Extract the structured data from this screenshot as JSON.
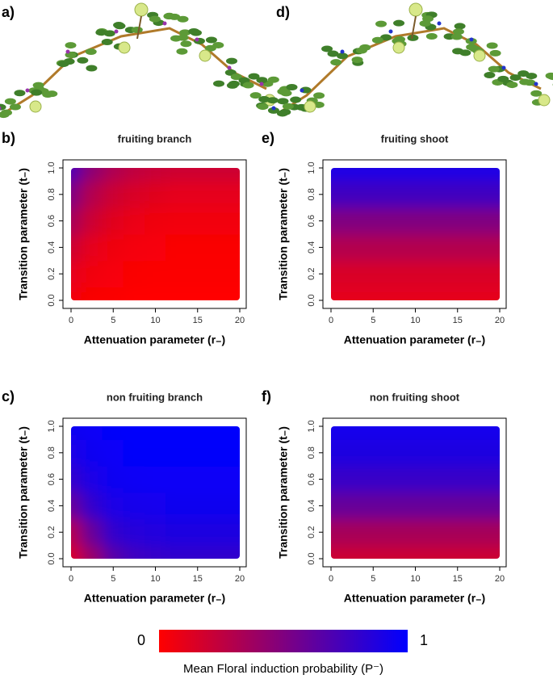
{
  "illustrations": [
    {
      "panel": "a)"
    },
    {
      "panel": "d)"
    }
  ],
  "colorbar": {
    "label": "Mean Floral induction probability (P⁻)",
    "ticks": [
      0,
      1
    ],
    "colors": [
      "#ff0000",
      "#0000ff"
    ]
  },
  "chart_data": [
    {
      "type": "heatmap",
      "panel": "b)",
      "title": "fruiting branch",
      "xlabel": "Attenuation parameter (r₋)",
      "ylabel": "Transition parameter (t₋)",
      "x": [
        0,
        2.5,
        5,
        7.5,
        10,
        12.5,
        15,
        17.5,
        20
      ],
      "y": [
        0,
        0.2,
        0.4,
        0.6,
        0.8,
        1
      ],
      "z": [
        [
          0.05,
          0.02,
          0.01,
          0,
          0,
          0,
          0,
          0,
          0
        ],
        [
          0.1,
          0.05,
          0.03,
          0.02,
          0.01,
          0.01,
          0.01,
          0.01,
          0.01
        ],
        [
          0.2,
          0.1,
          0.06,
          0.04,
          0.03,
          0.02,
          0.02,
          0.02,
          0.02
        ],
        [
          0.35,
          0.2,
          0.12,
          0.08,
          0.06,
          0.05,
          0.05,
          0.05,
          0.05
        ],
        [
          0.5,
          0.3,
          0.2,
          0.15,
          0.12,
          0.1,
          0.1,
          0.1,
          0.1
        ],
        [
          0.7,
          0.45,
          0.32,
          0.25,
          0.22,
          0.2,
          0.2,
          0.2,
          0.2
        ]
      ],
      "xlim": [
        0,
        20
      ],
      "ylim": [
        0,
        1
      ],
      "xticks": [
        0,
        5,
        10,
        15,
        20
      ],
      "yticks": [
        {
          "value": 0,
          "label": "0.0"
        },
        {
          "value": 0.2,
          "label": "0.2"
        },
        {
          "value": 0.4,
          "label": "0.4"
        },
        {
          "value": 0.6,
          "label": "0.6"
        },
        {
          "value": 0.8,
          "label": "0.8"
        },
        {
          "value": 1,
          "label": "1.0"
        }
      ]
    },
    {
      "type": "heatmap",
      "panel": "e)",
      "title": "fruiting shoot",
      "xlabel": "Attenuation parameter (r₋)",
      "ylabel": "Transition parameter (t₋)",
      "x": [
        0,
        2.5,
        5,
        7.5,
        10,
        12.5,
        15,
        17.5,
        20
      ],
      "y": [
        0,
        0.2,
        0.4,
        0.6,
        0.8,
        1
      ],
      "z": [
        [
          0.1,
          0.1,
          0.1,
          0.1,
          0.1,
          0.1,
          0.1,
          0.1,
          0.1
        ],
        [
          0.15,
          0.15,
          0.15,
          0.15,
          0.15,
          0.15,
          0.15,
          0.15,
          0.15
        ],
        [
          0.3,
          0.3,
          0.3,
          0.3,
          0.3,
          0.3,
          0.3,
          0.3,
          0.3
        ],
        [
          0.5,
          0.5,
          0.5,
          0.5,
          0.5,
          0.5,
          0.5,
          0.5,
          0.5
        ],
        [
          0.75,
          0.75,
          0.75,
          0.75,
          0.75,
          0.75,
          0.75,
          0.75,
          0.75
        ],
        [
          0.9,
          0.9,
          0.9,
          0.9,
          0.9,
          0.9,
          0.9,
          0.9,
          0.9
        ]
      ],
      "xlim": [
        0,
        20
      ],
      "ylim": [
        0,
        1
      ],
      "xticks": [
        0,
        5,
        10,
        15,
        20
      ],
      "yticks": [
        {
          "value": 0,
          "label": "0.0"
        },
        {
          "value": 0.2,
          "label": "0.2"
        },
        {
          "value": 0.4,
          "label": "0.4"
        },
        {
          "value": 0.6,
          "label": "0.6"
        },
        {
          "value": 0.8,
          "label": "0.8"
        },
        {
          "value": 1,
          "label": "1.0"
        }
      ]
    },
    {
      "type": "heatmap",
      "panel": "c)",
      "title": "non fruiting branch",
      "xlabel": "Attenuation parameter (r₋)",
      "ylabel": "Transition parameter (t₋)",
      "x": [
        0,
        2.5,
        5,
        7.5,
        10,
        12.5,
        15,
        17.5,
        20
      ],
      "y": [
        0,
        0.2,
        0.4,
        0.6,
        0.8,
        1
      ],
      "z": [
        [
          0.15,
          0.4,
          0.65,
          0.75,
          0.78,
          0.8,
          0.8,
          0.8,
          0.8
        ],
        [
          0.3,
          0.6,
          0.8,
          0.85,
          0.87,
          0.88,
          0.88,
          0.88,
          0.88
        ],
        [
          0.6,
          0.8,
          0.9,
          0.92,
          0.93,
          0.94,
          0.94,
          0.94,
          0.94
        ],
        [
          0.8,
          0.9,
          0.95,
          0.96,
          0.97,
          0.97,
          0.97,
          0.97,
          0.97
        ],
        [
          0.9,
          0.95,
          0.97,
          0.98,
          0.98,
          0.98,
          0.98,
          0.98,
          0.98
        ],
        [
          0.95,
          0.97,
          0.98,
          0.99,
          0.99,
          0.99,
          0.99,
          0.99,
          0.99
        ]
      ],
      "xlim": [
        0,
        20
      ],
      "ylim": [
        0,
        1
      ],
      "xticks": [
        0,
        5,
        10,
        15,
        20
      ],
      "yticks": [
        {
          "value": 0,
          "label": "0.0"
        },
        {
          "value": 0.2,
          "label": "0.2"
        },
        {
          "value": 0.4,
          "label": "0.4"
        },
        {
          "value": 0.6,
          "label": "0.6"
        },
        {
          "value": 0.8,
          "label": "0.8"
        },
        {
          "value": 1,
          "label": "1.0"
        }
      ]
    },
    {
      "type": "heatmap",
      "panel": "f)",
      "title": "non fruiting shoot",
      "xlabel": "Attenuation parameter (r₋)",
      "ylabel": "Transition parameter (t₋)",
      "x": [
        0,
        2.5,
        5,
        7.5,
        10,
        12.5,
        15,
        17.5,
        20
      ],
      "y": [
        0,
        0.2,
        0.4,
        0.6,
        0.8,
        1
      ],
      "z": [
        [
          0.2,
          0.2,
          0.2,
          0.2,
          0.2,
          0.2,
          0.2,
          0.2,
          0.2
        ],
        [
          0.35,
          0.35,
          0.35,
          0.35,
          0.35,
          0.35,
          0.35,
          0.35,
          0.35
        ],
        [
          0.6,
          0.6,
          0.6,
          0.6,
          0.6,
          0.6,
          0.6,
          0.6,
          0.6
        ],
        [
          0.78,
          0.78,
          0.78,
          0.78,
          0.78,
          0.78,
          0.78,
          0.78,
          0.78
        ],
        [
          0.88,
          0.88,
          0.88,
          0.88,
          0.88,
          0.88,
          0.88,
          0.88,
          0.88
        ],
        [
          0.93,
          0.93,
          0.93,
          0.93,
          0.93,
          0.93,
          0.93,
          0.93,
          0.93
        ]
      ],
      "xlim": [
        0,
        20
      ],
      "ylim": [
        0,
        1
      ],
      "xticks": [
        0,
        5,
        10,
        15,
        20
      ],
      "yticks": [
        {
          "value": 0,
          "label": "0.0"
        },
        {
          "value": 0.2,
          "label": "0.2"
        },
        {
          "value": 0.4,
          "label": "0.4"
        },
        {
          "value": 0.6,
          "label": "0.6"
        },
        {
          "value": 0.8,
          "label": "0.8"
        },
        {
          "value": 1,
          "label": "1.0"
        }
      ]
    }
  ]
}
